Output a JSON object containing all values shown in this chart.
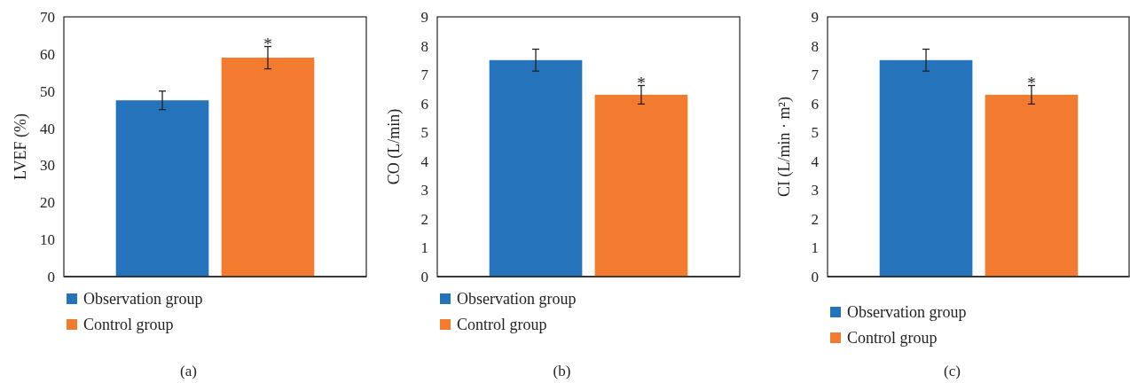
{
  "chart_data": [
    {
      "type": "bar",
      "ylabel": "LVEF (%)",
      "categories": [
        null
      ],
      "ylim": [
        0,
        70
      ],
      "yticks": [
        0,
        10,
        20,
        30,
        40,
        50,
        60,
        70
      ],
      "legend": "bottom",
      "series": [
        {
          "name": "Observation group",
          "color": "#2473bb",
          "values": [
            47.5
          ],
          "errors": [
            2.5
          ]
        },
        {
          "name": "Control group",
          "color": "#f37b30",
          "values": [
            59
          ],
          "errors": [
            3
          ]
        }
      ],
      "annotations": [
        {
          "text": "*",
          "y": 62
        },
        "(a)"
      ]
    },
    {
      "type": "bar",
      "ylabel": "CO (L/min)",
      "categories": [
        null
      ],
      "ylim": [
        0,
        9
      ],
      "yticks": [
        0,
        1,
        2,
        3,
        4,
        5,
        6,
        7,
        8,
        9
      ],
      "legend": "bottom",
      "series": [
        {
          "name": "Observation group",
          "color": "#2473bb",
          "values": [
            7.5
          ],
          "errors": [
            0.38
          ]
        },
        {
          "name": "Control group",
          "color": "#f37b30",
          "values": [
            6.3
          ],
          "errors": [
            0.32
          ]
        }
      ],
      "annotations": [
        {
          "text": "*",
          "y": 6.62
        },
        "(b)"
      ]
    },
    {
      "type": "bar",
      "ylabel": "CI (L/min · m²)",
      "categories": [
        null
      ],
      "ylim": [
        0,
        9
      ],
      "yticks": [
        0,
        1,
        2,
        3,
        4,
        5,
        6,
        7,
        8,
        9
      ],
      "legend": "bottom",
      "series": [
        {
          "name": "Observation group",
          "color": "#2473bb",
          "values": [
            7.5
          ],
          "errors": [
            0.38
          ]
        },
        {
          "name": "Control group",
          "color": "#f37b30",
          "values": [
            6.3
          ],
          "errors": [
            0.32
          ]
        }
      ],
      "annotations": [
        {
          "text": "*",
          "y": 6.62
        },
        "(c)"
      ]
    }
  ]
}
